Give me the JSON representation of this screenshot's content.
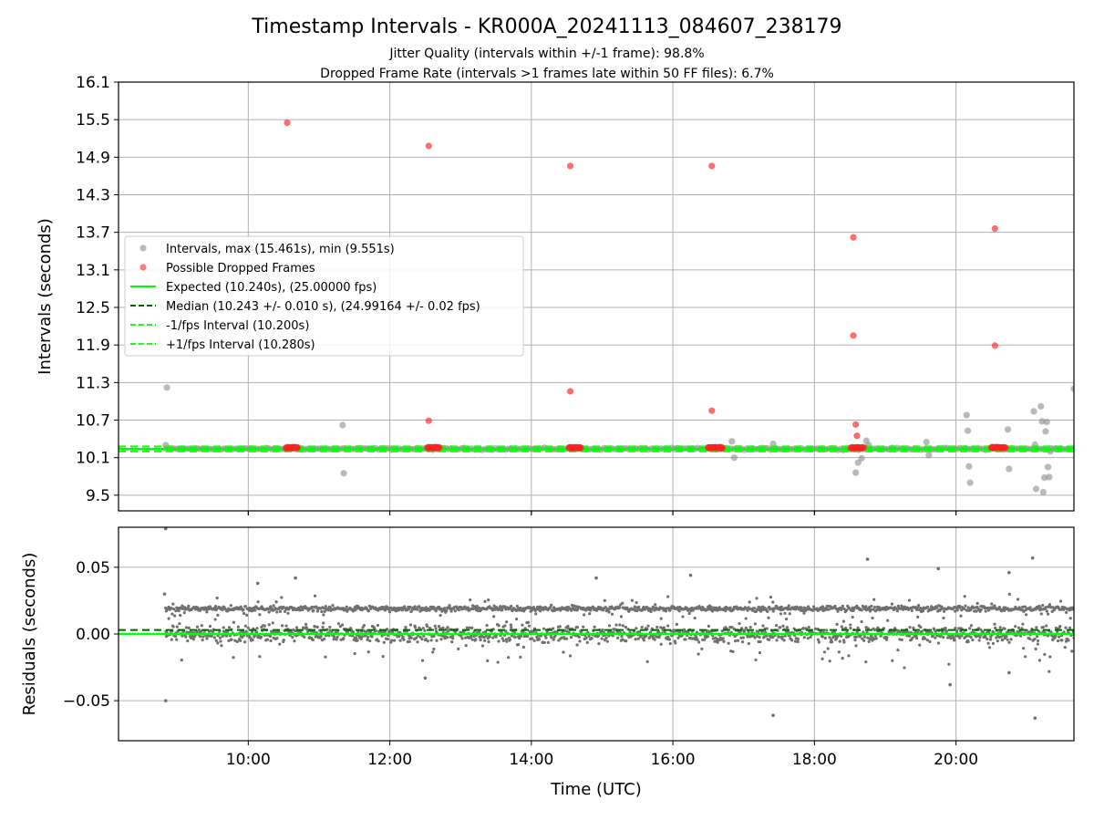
{
  "figure": {
    "title": "Timestamp Intervals - KR000A_20241113_084607_238179",
    "subtitle_1": "Jitter Quality (intervals within +/-1 frame): 98.8%",
    "subtitle_2": "Dropped Frame Rate (intervals >1 frames late within 50 FF files): 6.7%"
  },
  "colors": {
    "interval_points": "#8c8c8c",
    "dropped_points": "#ff2020",
    "expected_line": "#00ff00",
    "median_line": "#006400",
    "band_lines": "#1aff1a",
    "residual_points": "#707070",
    "grid": "#b0b0b0"
  },
  "chart_data": [
    {
      "type": "scatter",
      "ylabel": "Intervals (seconds)",
      "xlabel": "",
      "xlim": [
        "08:10",
        "21:40"
      ],
      "ylim": [
        9.25,
        16.1
      ],
      "grid": true,
      "legend_placement": "center-left",
      "x_ticks": [
        "10:00",
        "12:00",
        "14:00",
        "16:00",
        "18:00",
        "20:00"
      ],
      "y_ticks": [
        "9.5",
        "10.1",
        "10.7",
        "11.3",
        "11.9",
        "12.5",
        "13.1",
        "13.7",
        "14.3",
        "14.9",
        "15.5",
        "16.1"
      ],
      "legend": [
        {
          "label": "Intervals, max (15.461s), min (9.551s)",
          "kind": "dot",
          "color": "#8c8c8c"
        },
        {
          "label": "Possible Dropped Frames",
          "kind": "dot",
          "color": "#ff2020"
        },
        {
          "label": "Expected (10.240s), (25.00000 fps)",
          "kind": "solid",
          "color": "#00ff00"
        },
        {
          "label": "Median (10.243 +/- 0.010 s), (24.99164 +/- 0.02 fps)",
          "kind": "dashed",
          "color": "#006400"
        },
        {
          "label": "-1/fps Interval (10.200s)",
          "kind": "dashed",
          "color": "#1aff1a"
        },
        {
          "label": "+1/fps Interval (10.280s)",
          "kind": "dashed",
          "color": "#1aff1a"
        }
      ],
      "series": [
        {
          "name": "Intervals, max (15.461s), min (9.551s)",
          "band": {
            "x_start": "08:50",
            "x_end": "21:40",
            "y_center": 10.24,
            "jitter": 0.02
          },
          "outliers": [
            {
              "x": "08:50",
              "y": 10.3
            },
            {
              "x": "08:51",
              "y": 11.22
            },
            {
              "x": "11:20",
              "y": 10.62
            },
            {
              "x": "11:21",
              "y": 9.85
            },
            {
              "x": "16:50",
              "y": 10.36
            },
            {
              "x": "16:52",
              "y": 10.1
            },
            {
              "x": "17:25",
              "y": 10.32
            },
            {
              "x": "18:35",
              "y": 9.86
            },
            {
              "x": "18:37",
              "y": 10.02
            },
            {
              "x": "18:40",
              "y": 10.09
            },
            {
              "x": "18:44",
              "y": 10.37
            },
            {
              "x": "18:46",
              "y": 10.3
            },
            {
              "x": "19:35",
              "y": 10.35
            },
            {
              "x": "19:37",
              "y": 10.14
            },
            {
              "x": "20:09",
              "y": 10.78
            },
            {
              "x": "20:10",
              "y": 10.53
            },
            {
              "x": "20:11",
              "y": 9.96
            },
            {
              "x": "20:12",
              "y": 9.7
            },
            {
              "x": "20:44",
              "y": 10.55
            },
            {
              "x": "20:45",
              "y": 9.92
            },
            {
              "x": "21:06",
              "y": 10.84
            },
            {
              "x": "21:07",
              "y": 10.31
            },
            {
              "x": "21:08",
              "y": 9.6
            },
            {
              "x": "21:12",
              "y": 10.92
            },
            {
              "x": "21:13",
              "y": 10.68
            },
            {
              "x": "21:14",
              "y": 9.55
            },
            {
              "x": "21:15",
              "y": 9.78
            },
            {
              "x": "21:16",
              "y": 10.52
            },
            {
              "x": "21:17",
              "y": 10.67
            },
            {
              "x": "21:18",
              "y": 9.95
            },
            {
              "x": "21:19",
              "y": 9.79
            },
            {
              "x": "21:20",
              "y": 10.2
            },
            {
              "x": "21:40",
              "y": 11.2
            }
          ]
        },
        {
          "name": "Possible Dropped Frames",
          "clusters": [
            {
              "x_start": "10:32",
              "x_end": "10:42",
              "y": 10.26
            },
            {
              "x_start": "12:32",
              "x_end": "12:42",
              "y": 10.26
            },
            {
              "x_start": "14:32",
              "x_end": "14:42",
              "y": 10.26
            },
            {
              "x_start": "16:30",
              "x_end": "16:42",
              "y": 10.26
            },
            {
              "x_start": "18:31",
              "x_end": "18:42",
              "y": 10.26
            },
            {
              "x_start": "20:30",
              "x_end": "20:42",
              "y": 10.26
            }
          ],
          "points": [
            {
              "x": "10:33",
              "y": 15.45
            },
            {
              "x": "12:33",
              "y": 15.08
            },
            {
              "x": "14:33",
              "y": 14.76
            },
            {
              "x": "16:33",
              "y": 14.76
            },
            {
              "x": "18:33",
              "y": 13.62
            },
            {
              "x": "20:33",
              "y": 13.76
            },
            {
              "x": "12:33",
              "y": 10.69
            },
            {
              "x": "14:33",
              "y": 11.16
            },
            {
              "x": "16:33",
              "y": 10.85
            },
            {
              "x": "18:33",
              "y": 12.05
            },
            {
              "x": "18:35",
              "y": 10.63
            },
            {
              "x": "18:36",
              "y": 10.45
            },
            {
              "x": "20:33",
              "y": 11.89
            }
          ]
        }
      ],
      "lines": [
        {
          "name": "Expected (10.240s), (25.00000 fps)",
          "y": 10.24
        },
        {
          "name": "Median (10.243 +/- 0.010 s), (24.99164 +/- 0.02 fps)",
          "y": 10.243
        },
        {
          "name": "-1/fps Interval (10.200s)",
          "y": 10.2
        },
        {
          "name": "+1/fps Interval (10.280s)",
          "y": 10.28
        }
      ]
    },
    {
      "type": "scatter",
      "ylabel": "Residuals (seconds)",
      "xlabel": "Time (UTC)",
      "xlim": [
        "08:10",
        "21:40"
      ],
      "ylim": [
        -0.08,
        0.08
      ],
      "grid": true,
      "x_ticks": [
        "10:00",
        "12:00",
        "14:00",
        "16:00",
        "18:00",
        "20:00"
      ],
      "y_ticks": [
        "0.05",
        "0.00",
        "−0.05"
      ],
      "y_tick_values": [
        0.05,
        0.0,
        -0.05
      ],
      "series": [
        {
          "name": "",
          "bands": [
            {
              "y_center": 0.0,
              "spread": 0.006,
              "x_start": "08:50",
              "x_end": "21:40"
            },
            {
              "y_center": 0.019,
              "spread": 0.003,
              "x_start": "08:50",
              "x_end": "21:40"
            }
          ],
          "outliers": [
            {
              "x": "08:50",
              "y": 0.079
            },
            {
              "x": "08:50",
              "y": -0.05
            },
            {
              "x": "08:49",
              "y": 0.03
            },
            {
              "x": "10:08",
              "y": 0.038
            },
            {
              "x": "10:40",
              "y": 0.042
            },
            {
              "x": "12:30",
              "y": -0.033
            },
            {
              "x": "14:55",
              "y": 0.042
            },
            {
              "x": "16:15",
              "y": 0.044
            },
            {
              "x": "17:25",
              "y": -0.061
            },
            {
              "x": "18:45",
              "y": 0.056
            },
            {
              "x": "19:45",
              "y": 0.049
            },
            {
              "x": "19:55",
              "y": -0.038
            },
            {
              "x": "20:45",
              "y": 0.046
            },
            {
              "x": "20:45",
              "y": -0.029
            },
            {
              "x": "21:05",
              "y": 0.057
            },
            {
              "x": "21:07",
              "y": -0.063
            }
          ]
        }
      ],
      "lines": [
        {
          "name": "expected",
          "y": 0.0
        },
        {
          "name": "median",
          "y": 0.003
        }
      ]
    }
  ]
}
